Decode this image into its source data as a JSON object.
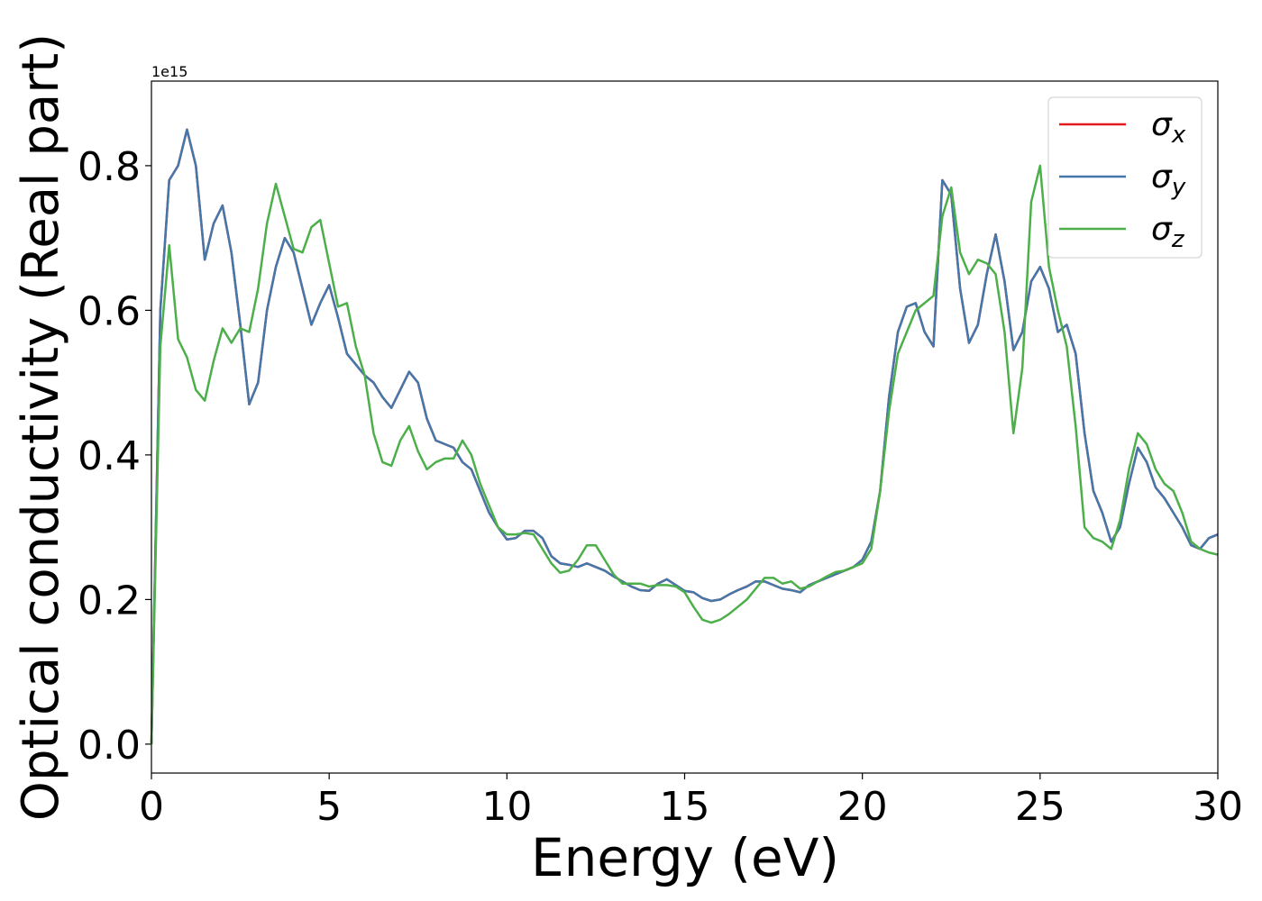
{
  "chart_data": {
    "type": "line",
    "xlabel": "Energy (eV)",
    "ylabel": "Optical conductivity (Real part)",
    "offset_text": "1e15",
    "x": [
      0,
      0.25,
      0.5,
      0.75,
      1,
      1.25,
      1.5,
      1.75,
      2,
      2.25,
      2.5,
      2.75,
      3,
      3.25,
      3.5,
      3.75,
      4,
      4.25,
      4.5,
      4.75,
      5,
      5.25,
      5.5,
      5.75,
      6,
      6.25,
      6.5,
      6.75,
      7,
      7.25,
      7.5,
      7.75,
      8,
      8.25,
      8.5,
      8.75,
      9,
      9.25,
      9.5,
      9.75,
      10,
      10.25,
      10.5,
      10.75,
      11,
      11.25,
      11.5,
      11.75,
      12,
      12.25,
      12.5,
      12.75,
      13,
      13.25,
      13.5,
      13.75,
      14,
      14.25,
      14.5,
      14.75,
      15,
      15.25,
      15.5,
      15.75,
      16,
      16.25,
      16.5,
      16.75,
      17,
      17.25,
      17.5,
      17.75,
      18,
      18.25,
      18.5,
      18.75,
      19,
      19.25,
      19.5,
      19.75,
      20,
      20.25,
      20.5,
      20.75,
      21,
      21.25,
      21.5,
      21.75,
      22,
      22.25,
      22.5,
      22.75,
      23,
      23.25,
      23.5,
      23.75,
      24,
      24.25,
      24.5,
      24.75,
      25,
      25.25,
      25.5,
      25.75,
      26,
      26.25,
      26.5,
      26.75,
      27,
      27.25,
      27.5,
      27.75,
      28,
      28.25,
      28.5,
      28.75,
      29,
      29.25,
      29.5,
      29.75,
      30
    ],
    "series": [
      {
        "name": "σx",
        "color": "#e41a1c",
        "values": [
          0,
          0.6,
          0.78,
          0.8,
          0.85,
          0.8,
          0.67,
          0.72,
          0.745,
          0.68,
          0.58,
          0.47,
          0.5,
          0.6,
          0.66,
          0.7,
          0.68,
          0.63,
          0.58,
          0.61,
          0.635,
          0.59,
          0.54,
          0.525,
          0.51,
          0.5,
          0.48,
          0.465,
          0.49,
          0.515,
          0.5,
          0.45,
          0.42,
          0.415,
          0.41,
          0.39,
          0.38,
          0.35,
          0.32,
          0.3,
          0.283,
          0.285,
          0.295,
          0.295,
          0.285,
          0.26,
          0.25,
          0.248,
          0.245,
          0.25,
          0.245,
          0.24,
          0.232,
          0.225,
          0.218,
          0.213,
          0.212,
          0.222,
          0.228,
          0.22,
          0.212,
          0.21,
          0.202,
          0.198,
          0.2,
          0.207,
          0.213,
          0.218,
          0.225,
          0.225,
          0.22,
          0.215,
          0.213,
          0.21,
          0.22,
          0.225,
          0.23,
          0.235,
          0.24,
          0.245,
          0.255,
          0.28,
          0.35,
          0.48,
          0.57,
          0.605,
          0.61,
          0.57,
          0.55,
          0.78,
          0.76,
          0.63,
          0.555,
          0.58,
          0.65,
          0.705,
          0.64,
          0.545,
          0.57,
          0.64,
          0.66,
          0.63,
          0.57,
          0.58,
          0.54,
          0.43,
          0.35,
          0.32,
          0.28,
          0.3,
          0.36,
          0.41,
          0.39,
          0.355,
          0.34,
          0.32,
          0.3,
          0.275,
          0.27,
          0.285,
          0.29
        ]
      },
      {
        "name": "σy",
        "color": "#4477aa",
        "values": [
          0,
          0.6,
          0.78,
          0.8,
          0.85,
          0.8,
          0.67,
          0.72,
          0.745,
          0.68,
          0.58,
          0.47,
          0.5,
          0.6,
          0.66,
          0.7,
          0.68,
          0.63,
          0.58,
          0.61,
          0.635,
          0.59,
          0.54,
          0.525,
          0.51,
          0.5,
          0.48,
          0.465,
          0.49,
          0.515,
          0.5,
          0.45,
          0.42,
          0.415,
          0.41,
          0.39,
          0.38,
          0.35,
          0.32,
          0.3,
          0.283,
          0.285,
          0.295,
          0.295,
          0.285,
          0.26,
          0.25,
          0.248,
          0.245,
          0.25,
          0.245,
          0.24,
          0.232,
          0.225,
          0.218,
          0.213,
          0.212,
          0.222,
          0.228,
          0.22,
          0.212,
          0.21,
          0.202,
          0.198,
          0.2,
          0.207,
          0.213,
          0.218,
          0.225,
          0.225,
          0.22,
          0.215,
          0.213,
          0.21,
          0.22,
          0.225,
          0.23,
          0.235,
          0.24,
          0.245,
          0.255,
          0.28,
          0.35,
          0.48,
          0.57,
          0.605,
          0.61,
          0.57,
          0.55,
          0.78,
          0.76,
          0.63,
          0.555,
          0.58,
          0.65,
          0.705,
          0.64,
          0.545,
          0.57,
          0.64,
          0.66,
          0.63,
          0.57,
          0.58,
          0.54,
          0.43,
          0.35,
          0.32,
          0.28,
          0.3,
          0.36,
          0.41,
          0.39,
          0.355,
          0.34,
          0.32,
          0.3,
          0.275,
          0.27,
          0.285,
          0.29
        ]
      },
      {
        "name": "σz",
        "color": "#4daf4a",
        "values": [
          0,
          0.55,
          0.69,
          0.56,
          0.535,
          0.49,
          0.475,
          0.53,
          0.575,
          0.555,
          0.575,
          0.57,
          0.63,
          0.72,
          0.775,
          0.73,
          0.685,
          0.68,
          0.715,
          0.725,
          0.665,
          0.605,
          0.61,
          0.55,
          0.51,
          0.43,
          0.39,
          0.385,
          0.42,
          0.44,
          0.405,
          0.38,
          0.39,
          0.395,
          0.395,
          0.42,
          0.4,
          0.36,
          0.33,
          0.3,
          0.29,
          0.29,
          0.292,
          0.29,
          0.27,
          0.25,
          0.237,
          0.24,
          0.255,
          0.275,
          0.275,
          0.255,
          0.235,
          0.222,
          0.222,
          0.222,
          0.218,
          0.22,
          0.22,
          0.218,
          0.21,
          0.19,
          0.172,
          0.168,
          0.172,
          0.18,
          0.19,
          0.2,
          0.215,
          0.23,
          0.23,
          0.222,
          0.225,
          0.215,
          0.218,
          0.225,
          0.232,
          0.238,
          0.24,
          0.245,
          0.25,
          0.27,
          0.35,
          0.46,
          0.54,
          0.57,
          0.6,
          0.61,
          0.62,
          0.73,
          0.77,
          0.68,
          0.65,
          0.67,
          0.665,
          0.65,
          0.57,
          0.43,
          0.52,
          0.75,
          0.8,
          0.66,
          0.6,
          0.55,
          0.44,
          0.3,
          0.285,
          0.28,
          0.27,
          0.31,
          0.38,
          0.43,
          0.415,
          0.38,
          0.36,
          0.35,
          0.32,
          0.28,
          0.27,
          0.265,
          0.262
        ]
      }
    ],
    "xlim": [
      0,
      30
    ],
    "xticks": [
      0,
      5,
      10,
      15,
      20,
      25,
      30
    ],
    "ylim": [
      -0.04,
      0.917
    ],
    "yticks": [
      {
        "value": 0,
        "label": "0.0"
      },
      0.2,
      0.4,
      0.6,
      0.8
    ],
    "grid": false,
    "legend": "upper right"
  }
}
